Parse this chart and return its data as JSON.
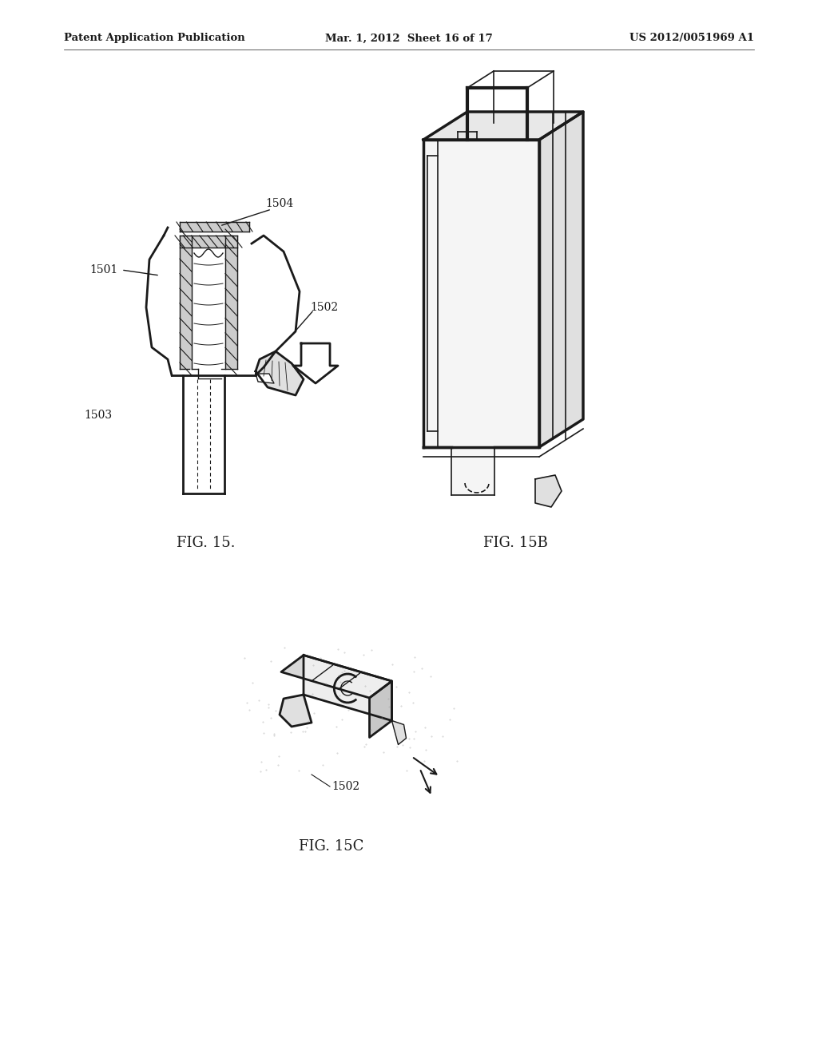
{
  "bg_color": "#ffffff",
  "header_left": "Patent Application Publication",
  "header_center": "Mar. 1, 2012  Sheet 16 of 17",
  "header_right": "US 2012/0051969 A1",
  "fig15_label": "FIG. 15.",
  "fig15b_label": "FIG. 15B",
  "fig15c_label": "FIG. 15C",
  "line_color": "#1a1a1a",
  "hatch_color": "#333333"
}
